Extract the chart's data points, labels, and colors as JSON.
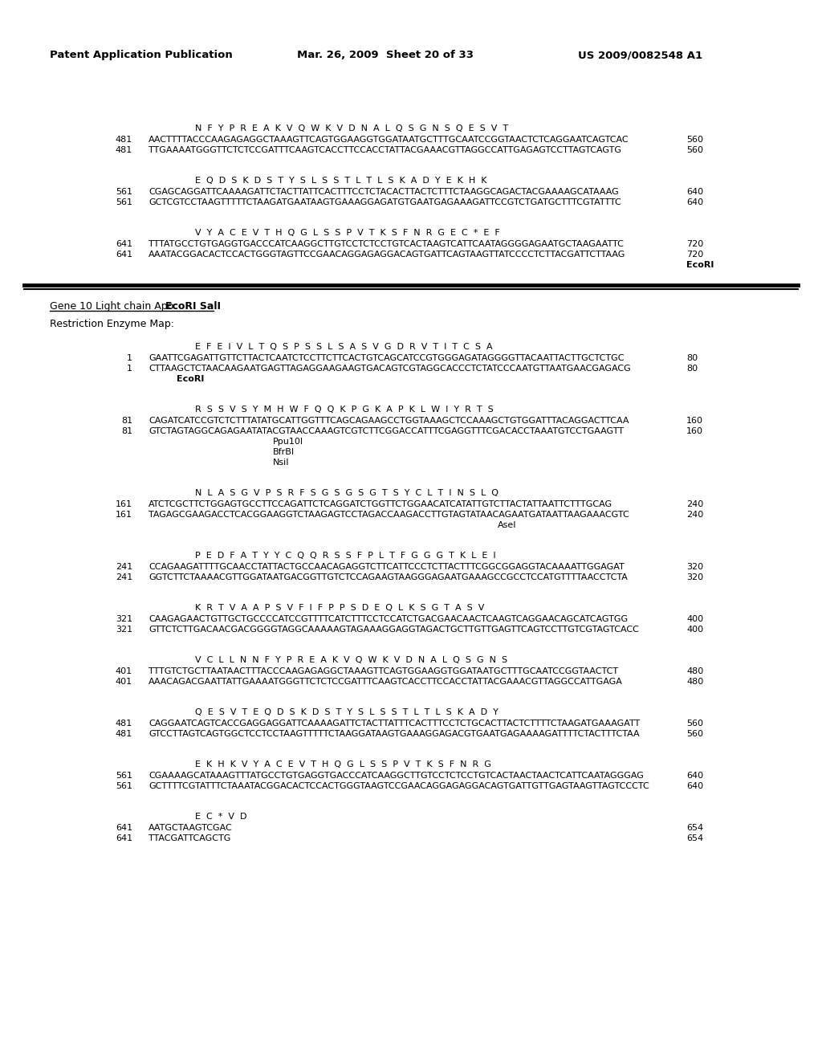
{
  "header_left": "Patent Application Publication",
  "header_mid": "Mar. 26, 2009  Sheet 20 of 33",
  "header_right": "US 2009/0082548 A1",
  "bg_color": "#ffffff",
  "top_sections": [
    {
      "aa": "N  F  Y  P  R  E  A  K  V  Q  W  K  V  D  N  A  L  Q  S  G  N  S  Q  E  S  V  T",
      "num1": "481",
      "seq1": "AACTTTTACCCAAGAGAGGCTAAAGTTCAGTGGAAGGTGGATAATGCTTTGCAATCCGGTAACTCTCAGGAATCAGTCAC",
      "end1": "560",
      "num2": "481",
      "seq2": "TTGAAAATGGGTTCTCTCCGATTTCAAGTCACCTTCCACCTATTACGAAACGTTAGGCCATTGAGAGTCCTTAGTCAGTG",
      "end2": "560",
      "enzyme": null
    },
    {
      "aa": "E  Q  D  S  K  D  S  T  Y  S  L  S  S  T  L  T  L  S  K  A  D  Y  E  K  H  K",
      "num1": "561",
      "seq1": "CGAGCAGGATTCAAAAGATTCTACTTATTCACTTTCCTCTACACTTACTCTTTCTAAGGCAGACTACGAAAAGCATAAAG",
      "end1": "640",
      "num2": "561",
      "seq2": "GCTCGTCCTAAGTTTTTCTAAGATGAATAAGTGAAAGGAGATGTGAATGAGAAAGATTCCGTCTGATGCTTTCGTATTTC",
      "end2": "640",
      "enzyme": null
    },
    {
      "aa": "V  Y  A  C  E  V  T  H  Q  G  L  S  S  P  V  T  K  S  F  N  R  G  E  C  *  E  F",
      "num1": "641",
      "seq1": "TTTATGCCTGTGAGGTGACCCATCAAGGCTTGTCCTCTCCTGTCACTAAGTCATTCAATAGGGGAGAATGCTAAGAATTC",
      "end1": "720",
      "num2": "641",
      "seq2": "AAATACGGACACTCCACTGGGTAGTTCCGAACAGGAGAGGACAGTGATTCAGTAAGTTATCCCCTCTTACGATTCTTAAG",
      "end2": "720",
      "enzyme": "EcoRI"
    }
  ],
  "gene_title_plain": "Gene 10 Light chain Apo ",
  "gene_title_bold": "EcoRI SalI",
  "restriction_label": "Restriction Enzyme Map:",
  "bottom_sections": [
    {
      "aa": "E  F  E  I  V  L  T  Q  S  P  S  S  L  S  A  S  V  G  D  R  V  T  I  T  C  S  A",
      "num1": "1",
      "seq1": "GAATTCGAGATTGTTCTTACTCAATCTCCTTCTTCACTGTCAGCATCCGTGGGAGATAGGGGTTACAATTACTTGCTCTGC",
      "end1": "80",
      "num2": "1",
      "seq2": "CTTAAGCTCTAACAAGAATGAGTTAGAGGAAGAAGTGACAGTCGTAGGCACCCTCTATCCCAATGTTAATGAACGAGACG",
      "end2": "80",
      "enzyme_lines": [
        "EcoRI"
      ],
      "enzyme_indent": 220
    },
    {
      "aa": "R  S  S  V  S  Y  M  H  W  F  Q  Q  K  P  G  K  A  P  K  L  W  I  Y  R  T  S",
      "num1": "81",
      "seq1": "CAGATCATCCGTCTCTTTATATGCATTGGTTTCAGCAGAAGCCTGGTAAAGCTCCAAAGCTGTGGATTTACAGGACTTCAA",
      "end1": "160",
      "num2": "81",
      "seq2": "GTCTAGTAGGCAGAGAATATACGTAACCAAAGTCGTCTTCGGACCATTTCGAGGTTTCGACACCTAAATGTCCTGAAGTT",
      "end2": "160",
      "enzyme_lines": [
        "Ppu10I",
        "BfrBI",
        "NsiI"
      ],
      "enzyme_indent": 340
    },
    {
      "aa": "N  L  A  S  G  V  P  S  R  F  S  G  S  G  S  G  T  S  Y  C  L  T  I  N  S  L  Q",
      "num1": "161",
      "seq1": "ATCTCGCTTCTGGAGTGCCTTCCAGATTCTCAGGATCTGGTTCTGGAACATCATATTGTCTTACTATTAATTCTTTGCAG",
      "end1": "240",
      "num2": "161",
      "seq2": "TAGAGCGAAGACCTCACGGAAGGTCTAAGAGTCCTAGACCAAGACCTTGTAGTATAACAGAATGATAATTAAGAAACGTC",
      "end2": "240",
      "enzyme_lines": [
        "AseI"
      ],
      "enzyme_indent": 620
    },
    {
      "aa": "P  E  D  F  A  T  Y  Y  C  Q  Q  R  S  S  F  P  L  T  F  G  G  G  T  K  L  E  I",
      "num1": "241",
      "seq1": "CCAGAAGATTTTGCAACCTATTACTGCCAACAGAGGTCTTCATTCCCTCTTACTTTCGGCGGAGGTACAAAATTGGAGAT",
      "end1": "320",
      "num2": "241",
      "seq2": "GGTCTTCTAAAACGTTGGATAATGACGGTTGTCTCCAGAAGTAAGGGAGAATGAAAGCCGCCTCCATGTTTTAACCTCTA",
      "end2": "320",
      "enzyme_lines": [],
      "enzyme_indent": 0
    },
    {
      "aa": "K  R  T  V  A  A  P  S  V  F  I  F  P  P  S  D  E  Q  L  K  S  G  T  A  S  V",
      "num1": "321",
      "seq1": "CAAGAGAACTGTTGCTGCCCCATCCGTTTTCATCTTTCCTCCATCTGACGAACAACTCAAGTCAGGAACAGCATCAGTGG",
      "end1": "400",
      "num2": "321",
      "seq2": "GTTCTCTTGACAACGACGGGGTAGGCAAAAAGTAGAAAGGAGGTAGACTGCTTGTTGAGTTCAGTCCTTGTCGTAGTCACC",
      "end2": "400",
      "enzyme_lines": [],
      "enzyme_indent": 0
    },
    {
      "aa": "V  C  L  L  N  N  F  Y  P  R  E  A  K  V  Q  W  K  V  D  N  A  L  Q  S  G  N  S",
      "num1": "401",
      "seq1": "TTTGTCTGCTTAATAACTTTACCCAAGAGAGGCTAAAGTTCAGTGGAAGGTGGATAATGCTTTGCAATCCGGTAACTCT",
      "end1": "480",
      "num2": "401",
      "seq2": "AAACAGACGAATTATTGAAAATGGGTTCTCTCCGATTTCAAGTCACCTTCCACCTATTACGAAACGTTAGGCCATTGAGA",
      "end2": "480",
      "enzyme_lines": [],
      "enzyme_indent": 0
    },
    {
      "aa": "Q  E  S  V  T  E  Q  D  S  K  D  S  T  Y  S  L  S  S  T  L  T  L  S  K  A  D  Y",
      "num1": "481",
      "seq1": "CAGGAATCAGTCACCGAGGAGGATTCAAAAGATTCTACTTATTTCACTTTCCTCTGCACTTACTCTTTTCTAAGATGAAAGATT",
      "end1": "560",
      "num2": "481",
      "seq2": "GTCCTTAGTCAGTGGCTCCTCCTAAGTTTTTCTAAGGATAAGTGAAAGGAGACGTGAATGAGAAAAGATTTTCTACTTTCTAA",
      "end2": "560",
      "enzyme_lines": [],
      "enzyme_indent": 0
    },
    {
      "aa": "E  K  H  K  V  Y  A  C  E  V  T  H  Q  G  L  S  S  P  V  T  K  S  F  N  R  G",
      "num1": "561",
      "seq1": "CGAAAAGCATAAAGTTTATGCCTGTGAGGTGACCCATCAAGGCTTGTCCTCTCCTGTCACTAACTAACTCATTCAATAGGGAG",
      "end1": "640",
      "num2": "561",
      "seq2": "GCTTTTCGTATTTCTAAATACGGACACTCCACTGGGTAAGTCCGAACAGGAGAGGACAGTGATTGTTGAGTAAGTTAGTCCCTC",
      "end2": "640",
      "enzyme_lines": [],
      "enzyme_indent": 0
    },
    {
      "aa": "E  C  *  V  D",
      "num1": "641",
      "seq1": "AATGCTAAGTCGAC",
      "end1": "654",
      "num2": "641",
      "seq2": "TTACGATTCAGCTG",
      "end2": "654",
      "enzyme_lines": [],
      "enzyme_indent": 0
    }
  ]
}
